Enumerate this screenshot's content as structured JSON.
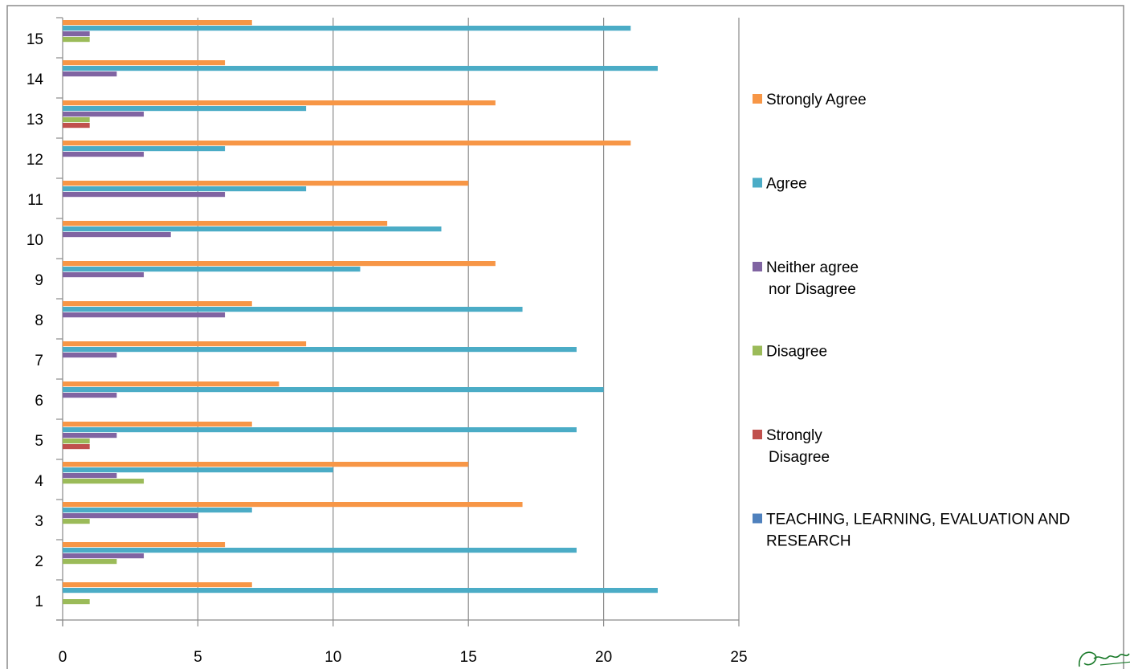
{
  "chart_data": {
    "type": "bar",
    "orientation": "horizontal",
    "title": "",
    "xlabel": "",
    "ylabel": "",
    "categories": [
      "1",
      "2",
      "3",
      "4",
      "5",
      "6",
      "7",
      "8",
      "9",
      "10",
      "11",
      "12",
      "13",
      "14",
      "15"
    ],
    "xlim": [
      0,
      25
    ],
    "x_ticks": [
      0,
      5,
      10,
      15,
      20,
      25
    ],
    "grid": "vertical",
    "legend_position": "right",
    "series": [
      {
        "name": "TEACHING, LEARNING, EVALUATION AND RESEARCH",
        "color": "#4F81BD",
        "values": [
          0,
          0,
          0,
          0,
          0,
          0,
          0,
          0,
          0,
          0,
          0,
          0,
          0,
          0,
          0
        ]
      },
      {
        "name": "Strongly Disagree",
        "color": "#C0504D",
        "values": [
          0,
          0,
          0,
          0,
          1,
          0,
          0,
          0,
          0,
          0,
          0,
          0,
          1,
          0,
          0
        ]
      },
      {
        "name": "Disagree",
        "color": "#9BBB59",
        "values": [
          1,
          2,
          1,
          3,
          1,
          0,
          0,
          0,
          0,
          0,
          0,
          0,
          1,
          0,
          1
        ]
      },
      {
        "name": "Neither agree nor Disagree",
        "color": "#8064A2",
        "values": [
          0,
          3,
          5,
          2,
          2,
          2,
          2,
          6,
          3,
          4,
          6,
          3,
          3,
          2,
          1
        ]
      },
      {
        "name": "Agree",
        "color": "#4BACC6",
        "values": [
          22,
          19,
          7,
          10,
          19,
          20,
          19,
          17,
          11,
          14,
          9,
          6,
          9,
          22,
          21
        ]
      },
      {
        "name": "Strongly Agree",
        "color": "#F79646",
        "values": [
          7,
          6,
          17,
          15,
          7,
          8,
          9,
          7,
          16,
          12,
          15,
          21,
          16,
          6,
          7
        ]
      }
    ],
    "legend": [
      {
        "lines": [
          "Strongly Agree"
        ],
        "series": "Strongly Agree"
      },
      {
        "lines": [
          "Agree"
        ],
        "series": "Agree"
      },
      {
        "lines": [
          "Neither agree",
          "nor Disagree"
        ],
        "series": "Neither agree nor Disagree"
      },
      {
        "lines": [
          "Disagree"
        ],
        "series": "Disagree"
      },
      {
        "lines": [
          "Strongly",
          "Disagree"
        ],
        "series": "Strongly Disagree"
      },
      {
        "lines": [
          "TEACHING, LEARNING, EVALUATION AND",
          "RESEARCH"
        ],
        "series": "TEACHING, LEARNING, EVALUATION AND RESEARCH"
      }
    ],
    "signature": "Pravin"
  }
}
